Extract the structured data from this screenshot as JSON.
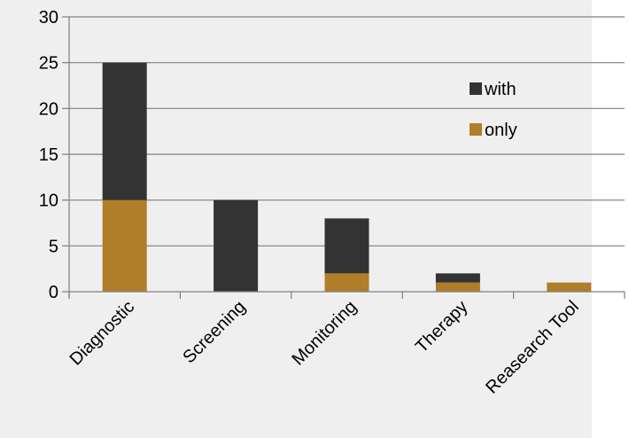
{
  "chart_data": {
    "type": "bar",
    "stacked": true,
    "categories": [
      "Diagnostic",
      "Screening",
      "Monitoring",
      "Therapy",
      "Reasearch Tool"
    ],
    "series": [
      {
        "name": "only",
        "values": [
          10,
          0,
          2,
          1,
          1
        ],
        "color": "#B07D28"
      },
      {
        "name": "with",
        "values": [
          15,
          10,
          6,
          1,
          0
        ],
        "color": "#333333"
      }
    ],
    "ylim": [
      0,
      30
    ],
    "yticks": [
      0,
      5,
      10,
      15,
      20,
      25,
      30
    ],
    "grid": true,
    "legend_position": "top-right",
    "legend_order": [
      "with",
      "only"
    ],
    "plot_background": "#EFEFEF",
    "gridline_color": "#7F7F7F"
  }
}
